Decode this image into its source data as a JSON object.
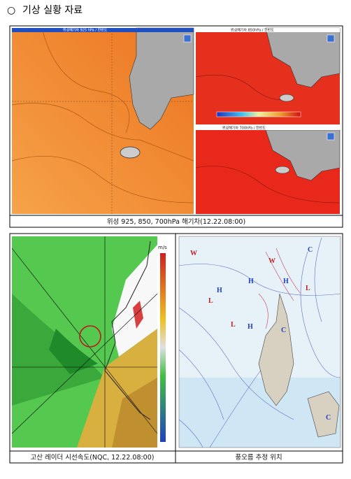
{
  "header": {
    "bullet": "○",
    "title": "기상 실황 자료"
  },
  "figure1": {
    "panels": [
      {
        "label": "위성해기차 925 hPa / 한반도"
      },
      {
        "label": "위성해기차 850hPa / 한반도"
      },
      {
        "label": "위성해기차 700hPa / 한반도"
      }
    ],
    "caption": "위성 925, 850, 700hPa 해기차(12.22.08:00)"
  },
  "figure2": {
    "radar": {
      "unit": "m/s",
      "caption": "고산 레이더 시선속도(NQC, 12.22.08:00)"
    },
    "surface_map": {
      "caption": "풍오름 추정 위치"
    }
  }
}
